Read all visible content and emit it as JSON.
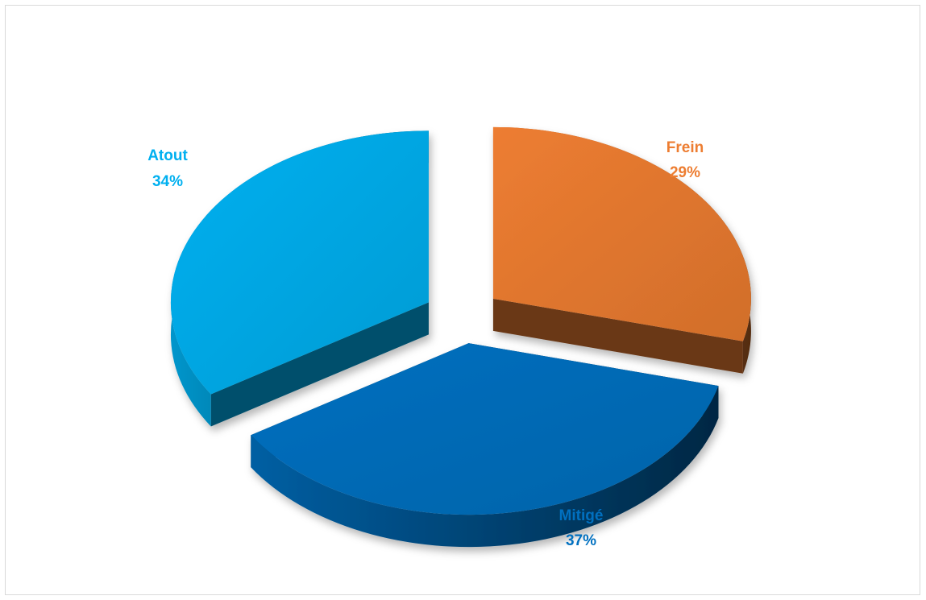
{
  "chart_data": {
    "type": "pie",
    "style": "3d-exploded",
    "slices": [
      {
        "name": "Frein",
        "value": 29,
        "label": "29%",
        "color": "#ED7D31"
      },
      {
        "name": "Mitigé",
        "value": 37,
        "label": "37%",
        "color": "#0070C0"
      },
      {
        "name": "Atout",
        "value": 34,
        "label": "34%",
        "color": "#00B0F0"
      }
    ],
    "legend": "none"
  }
}
